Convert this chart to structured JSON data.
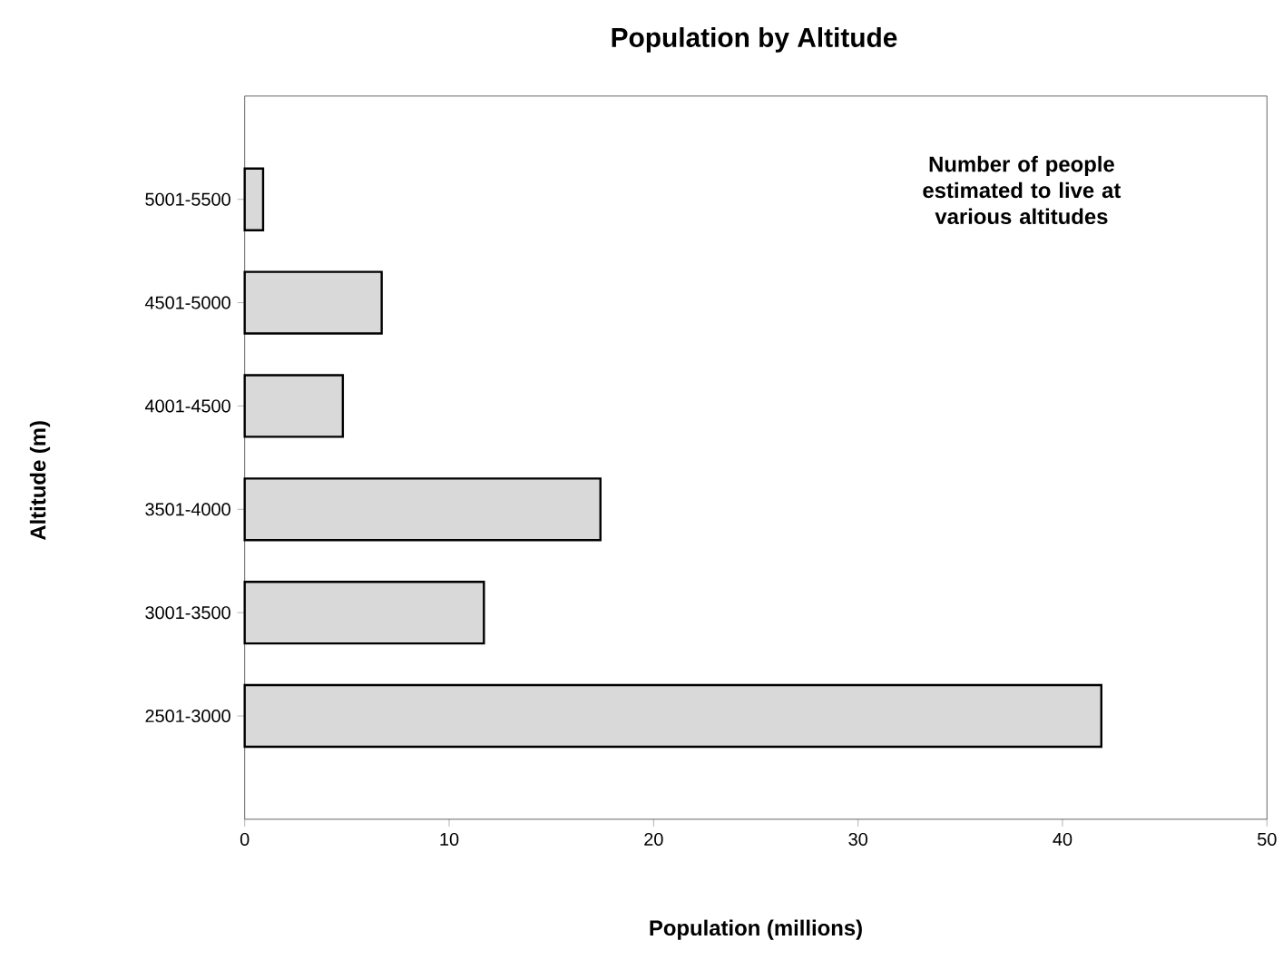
{
  "chart_data": {
    "type": "bar",
    "orientation": "horizontal",
    "title": "Population by Altitude",
    "xlabel": "Population (millions)",
    "ylabel": "Altitude (m)",
    "categories": [
      "5001-5500",
      "4501-5000",
      "4001-4500",
      "3501-4000",
      "3001-3500",
      "2501-3000"
    ],
    "values": [
      0.9,
      6.7,
      4.8,
      17.4,
      11.7,
      41.9
    ],
    "color": "#d9d9d9",
    "xlim": [
      0,
      50
    ],
    "xticks": [
      0,
      10,
      20,
      30,
      40,
      50
    ],
    "annotations": [
      "Number of people estimated to live at various altitudes"
    ]
  }
}
